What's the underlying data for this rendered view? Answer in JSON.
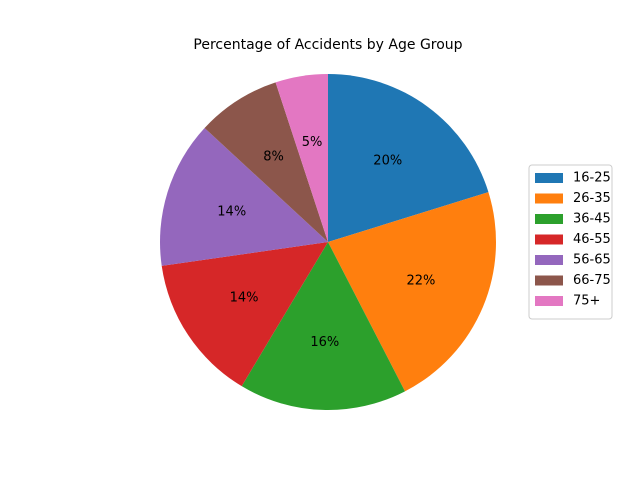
{
  "chart_data": {
    "type": "pie",
    "title": "Percentage of Accidents by Age Group",
    "categories": [
      "16-25",
      "26-35",
      "36-45",
      "46-55",
      "56-65",
      "66-75",
      "75+"
    ],
    "values": [
      20,
      22,
      16,
      14,
      14,
      8,
      5
    ],
    "labels": [
      "20%",
      "22%",
      "16%",
      "14%",
      "14%",
      "8%",
      "5%"
    ],
    "colors": [
      "#1f77b4",
      "#ff7f0e",
      "#2ca02c",
      "#d62728",
      "#9467bd",
      "#8c564b",
      "#e377c2"
    ],
    "start_angle": 90,
    "direction": "clockwise",
    "legend": {
      "placement": "center-right",
      "entries": [
        "16-25",
        "26-35",
        "36-45",
        "46-55",
        "56-65",
        "66-75",
        "75+"
      ]
    }
  }
}
